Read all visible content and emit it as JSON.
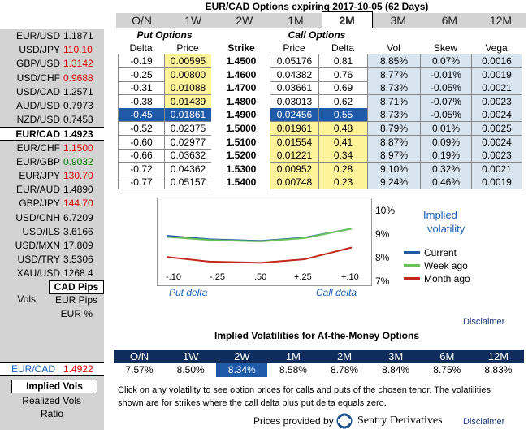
{
  "title": "EUR/CAD Options expiring 2017-10-05 (62 Days)",
  "tabs": [
    "O/N",
    "1W",
    "2W",
    "1M",
    "2M",
    "3M",
    "6M",
    "12M"
  ],
  "active_tab": "2M",
  "sidebar": {
    "pairs": [
      {
        "name": "EUR/USD",
        "price": "1.1871",
        "color": "black"
      },
      {
        "name": "USD/JPY",
        "price": "110.10",
        "color": "red"
      },
      {
        "name": "GBP/USD",
        "price": "1.3142",
        "color": "red"
      },
      {
        "name": "USD/CHF",
        "price": "0.9688",
        "color": "red"
      },
      {
        "name": "USD/CAD",
        "price": "1.2571",
        "color": "black"
      },
      {
        "name": "AUD/USD",
        "price": "0.7973",
        "color": "black"
      },
      {
        "name": "NZD/USD",
        "price": "0.7453",
        "color": "black"
      },
      {
        "name": "EUR/CAD",
        "price": "1.4923",
        "color": "black",
        "selected": true
      },
      {
        "name": "EUR/CHF",
        "price": "1.1500",
        "color": "red"
      },
      {
        "name": "EUR/GBP",
        "price": "0.9032",
        "color": "green"
      },
      {
        "name": "EUR/JPY",
        "price": "130.70",
        "color": "red"
      },
      {
        "name": "EUR/AUD",
        "price": "1.4890",
        "color": "black"
      },
      {
        "name": "GBP/JPY",
        "price": "144.70",
        "color": "red"
      },
      {
        "name": "USD/CNH",
        "price": "6.7209",
        "color": "black"
      },
      {
        "name": "USD/ILS",
        "price": "3.6166",
        "color": "black"
      },
      {
        "name": "USD/MXN",
        "price": "17.809",
        "color": "black"
      },
      {
        "name": "USD/TRY",
        "price": "3.5306",
        "color": "black"
      },
      {
        "name": "XAU/USD",
        "price": "1268.4",
        "color": "black"
      }
    ],
    "vols_label": "Vols",
    "cad_pips": "CAD Pips",
    "eur_pips": "EUR Pips",
    "eur_pct": "EUR %",
    "atm_pair": "EUR/CAD",
    "atm_price": "1.4922",
    "implied_vols": "Implied Vols",
    "realized_vols": "Realized Vols",
    "ratio": "Ratio"
  },
  "table": {
    "put_header": "Put Options",
    "call_header": "Call Options",
    "cols": [
      "Delta",
      "Price",
      "Strike",
      "Price",
      "Delta",
      "Vol",
      "Skew",
      "Vega"
    ],
    "rows": [
      [
        "-0.19",
        "0.00595",
        "1.4500",
        "0.05176",
        "0.81",
        "8.85%",
        "0.07%",
        "0.0016"
      ],
      [
        "-0.25",
        "0.00800",
        "1.4600",
        "0.04382",
        "0.76",
        "8.77%",
        "-0.01%",
        "0.0019"
      ],
      [
        "-0.31",
        "0.01088",
        "1.4700",
        "0.03661",
        "0.69",
        "8.73%",
        "-0.05%",
        "0.0021"
      ],
      [
        "-0.38",
        "0.01439",
        "1.4800",
        "0.03013",
        "0.62",
        "8.71%",
        "-0.07%",
        "0.0023"
      ],
      [
        "-0.45",
        "0.01861",
        "1.4900",
        "0.02456",
        "0.55",
        "8.73%",
        "-0.05%",
        "0.0024"
      ],
      [
        "-0.52",
        "0.02375",
        "1.5000",
        "0.01961",
        "0.48",
        "8.79%",
        "0.01%",
        "0.0025"
      ],
      [
        "-0.60",
        "0.02977",
        "1.5100",
        "0.01554",
        "0.41",
        "8.87%",
        "0.09%",
        "0.0024"
      ],
      [
        "-0.66",
        "0.03632",
        "1.5200",
        "0.01221",
        "0.34",
        "8.97%",
        "0.19%",
        "0.0023"
      ],
      [
        "-0.72",
        "0.04362",
        "1.5300",
        "0.00952",
        "0.28",
        "9.10%",
        "0.32%",
        "0.0021"
      ],
      [
        "-0.77",
        "0.05157",
        "1.5400",
        "0.00748",
        "0.23",
        "9.24%",
        "0.46%",
        "0.0019"
      ]
    ]
  },
  "chart": {
    "y_labels": [
      "10%",
      "9%",
      "8%",
      "7%"
    ],
    "x_labels": [
      "-.10",
      "-.25",
      ".50",
      "+.25",
      "+.10"
    ],
    "put_delta": "Put delta",
    "call_delta": "Call delta",
    "legend_title_1": "Implied",
    "legend_title_2": "volatility",
    "legend": [
      {
        "name": "Current",
        "color": "#1f5aa8"
      },
      {
        "name": "Week ago",
        "color": "#6ac35a"
      },
      {
        "name": "Month ago",
        "color": "#c0281c"
      }
    ],
    "disclaimer": "Disclaimer"
  },
  "atm": {
    "title": "Implied Volatilities for At-the-Money Options",
    "tenors": [
      "O/N",
      "1W",
      "2W",
      "1M",
      "2M",
      "3M",
      "6M",
      "12M"
    ],
    "values": [
      "7.57%",
      "8.50%",
      "8.34%",
      "8.58%",
      "8.78%",
      "8.84%",
      "8.75%",
      "8.83%"
    ],
    "note1": "Click on any volatility to see option prices for calls and puts of the chosen tenor. The volatilities",
    "note2": "shown are for strikes where the call delta plus put delta equals zero.",
    "provided": "Prices provided by",
    "provider": "Sentry Derivatives",
    "disclaimer": "Disclaimer"
  }
}
